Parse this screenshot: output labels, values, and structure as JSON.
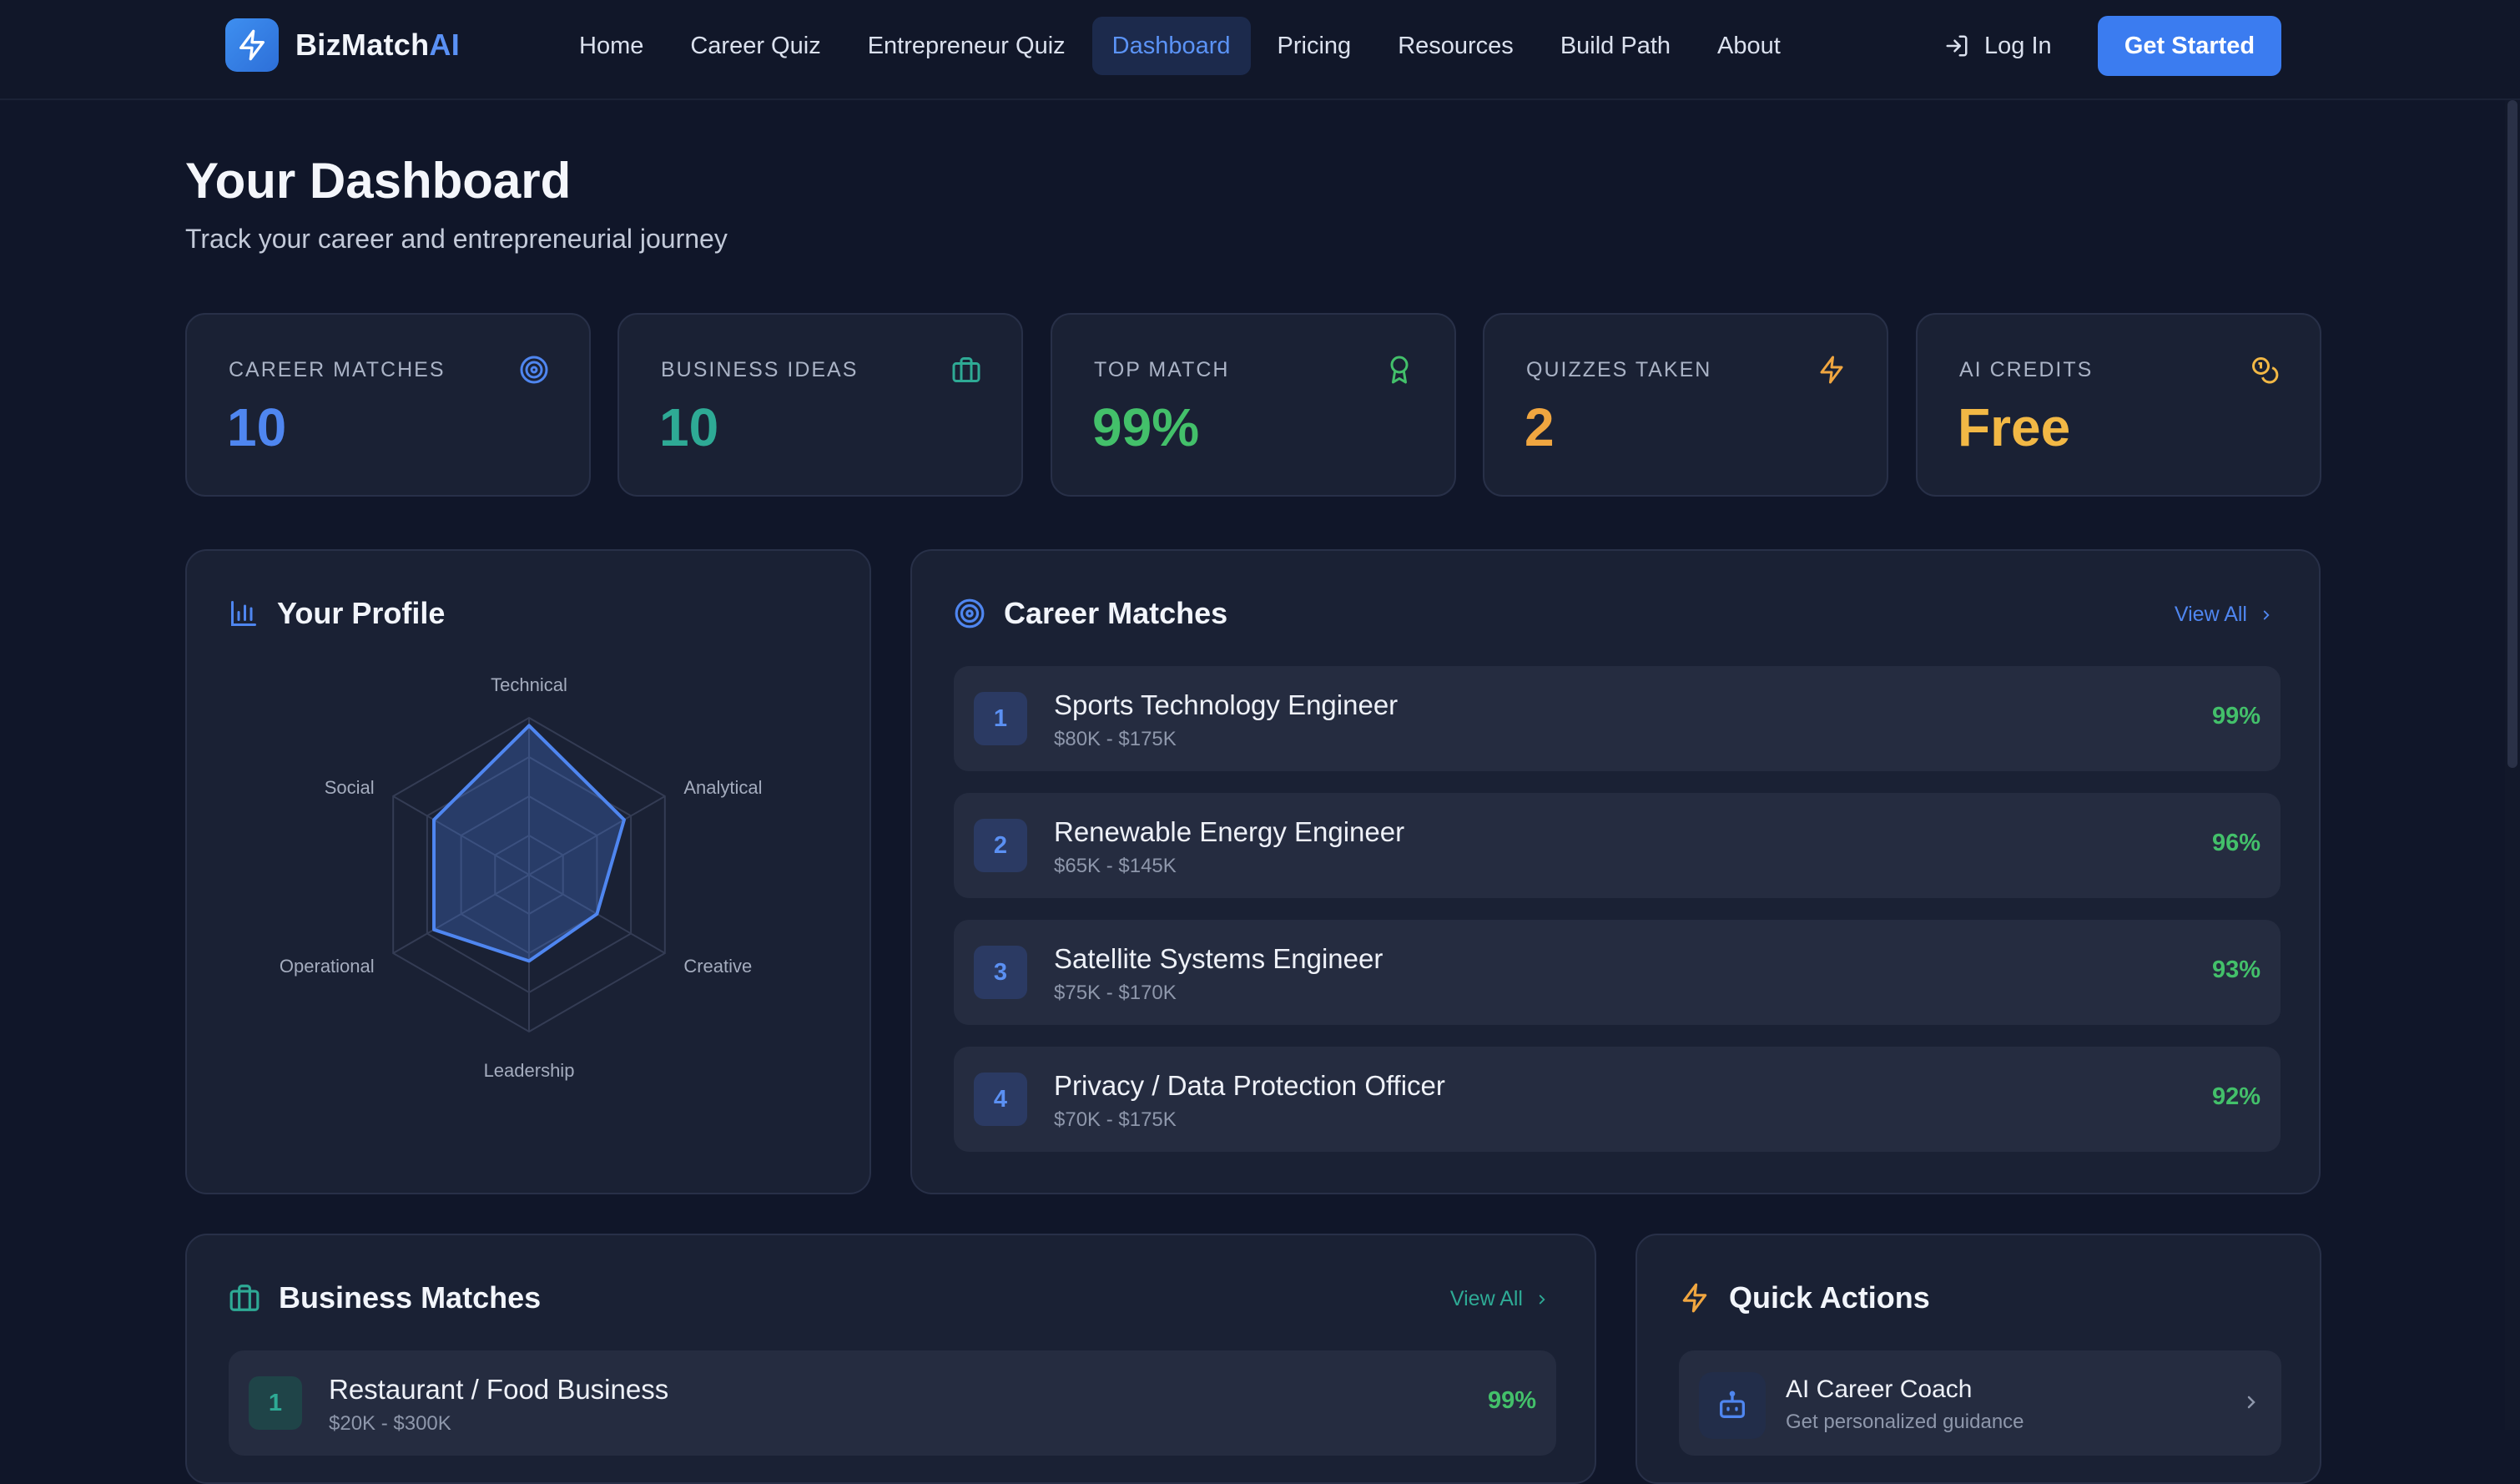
{
  "brand": {
    "name_main": "BizMatch",
    "name_accent": "AI"
  },
  "nav": {
    "links": [
      "Home",
      "Career Quiz",
      "Entrepreneur Quiz",
      "Dashboard",
      "Pricing",
      "Resources",
      "Build Path",
      "About"
    ],
    "active": "Dashboard",
    "login_label": "Log In",
    "cta_label": "Get Started"
  },
  "header": {
    "title": "Your Dashboard",
    "subtitle": "Track your career and entrepreneurial journey"
  },
  "stats": [
    {
      "label": "CAREER MATCHES",
      "value": "10",
      "icon": "target-icon",
      "color": "#4f86f0"
    },
    {
      "label": "BUSINESS IDEAS",
      "value": "10",
      "icon": "briefcase-icon",
      "color": "#2eaa95"
    },
    {
      "label": "TOP MATCH",
      "value": "99%",
      "icon": "award-icon",
      "color": "#43c06a"
    },
    {
      "label": "QUIZZES TAKEN",
      "value": "2",
      "icon": "lightning-icon",
      "color": "#f0a640"
    },
    {
      "label": "AI CREDITS",
      "value": "Free",
      "icon": "coins-icon",
      "color": "#f2b845"
    }
  ],
  "profile": {
    "title": "Your Profile",
    "axes": [
      "Technical",
      "Analytical",
      "Creative",
      "Leadership",
      "Operational",
      "Social"
    ],
    "values": [
      0.95,
      0.7,
      0.5,
      0.55,
      0.7,
      0.7
    ],
    "color": "#4f86f0"
  },
  "career": {
    "title": "Career Matches",
    "view_all": "View All",
    "items": [
      {
        "rank": "1",
        "title": "Sports Technology Engineer",
        "salary": "$80K - $175K",
        "match": "99%"
      },
      {
        "rank": "2",
        "title": "Renewable Energy Engineer",
        "salary": "$65K - $145K",
        "match": "96%"
      },
      {
        "rank": "3",
        "title": "Satellite Systems Engineer",
        "salary": "$75K - $170K",
        "match": "93%"
      },
      {
        "rank": "4",
        "title": "Privacy / Data Protection Officer",
        "salary": "$70K - $175K",
        "match": "92%"
      }
    ]
  },
  "business": {
    "title": "Business Matches",
    "view_all": "View All",
    "items": [
      {
        "rank": "1",
        "title": "Restaurant / Food Business",
        "investment": "$20K - $300K",
        "match": "99%"
      }
    ]
  },
  "quick": {
    "title": "Quick Actions",
    "items": [
      {
        "title": "AI Career Coach",
        "subtitle": "Get personalized guidance",
        "icon": "robot-icon"
      }
    ]
  }
}
